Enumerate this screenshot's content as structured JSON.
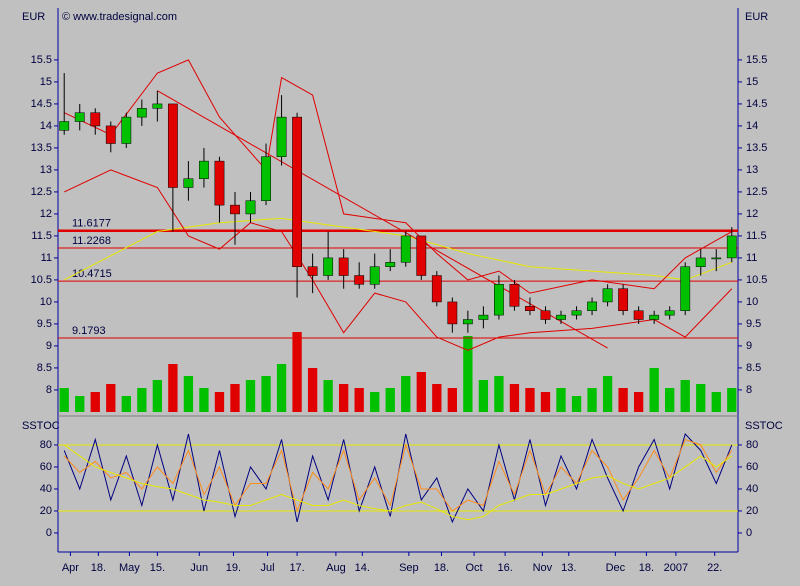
{
  "header": {
    "currency_left": "EUR",
    "copyright": "© www.tradesignal.com",
    "currency_right": "EUR"
  },
  "chart_data": [
    {
      "type": "candlestick",
      "xlim": [
        -0.4,
        43.4
      ],
      "ylim": [
        7.43,
        16.68
      ],
      "yticks": [
        8,
        8.5,
        9,
        9.5,
        10,
        10.5,
        11,
        11.5,
        12,
        12.5,
        13,
        13.5,
        14,
        14.5,
        15,
        15.5
      ],
      "open": [
        13.9,
        14.1,
        14.3,
        14.0,
        13.6,
        14.2,
        14.4,
        14.5,
        12.6,
        12.8,
        13.2,
        12.2,
        12.0,
        12.3,
        13.3,
        14.2,
        10.8,
        10.6,
        11.0,
        10.6,
        10.4,
        10.8,
        10.9,
        11.5,
        10.6,
        10.0,
        9.5,
        9.6,
        9.7,
        10.4,
        9.9,
        9.8,
        9.6,
        9.7,
        9.8,
        10.0,
        10.3,
        9.8,
        9.6,
        9.7,
        9.8,
        10.8,
        11.0,
        11.0
      ],
      "high": [
        15.2,
        14.5,
        14.4,
        14.1,
        14.3,
        14.6,
        14.8,
        14.5,
        13.2,
        13.5,
        13.3,
        12.5,
        12.5,
        13.6,
        14.7,
        14.3,
        11.1,
        11.6,
        11.2,
        10.9,
        11.1,
        11.2,
        11.6,
        11.5,
        10.7,
        10.1,
        9.8,
        9.9,
        10.6,
        10.5,
        10.1,
        9.9,
        9.8,
        9.9,
        10.1,
        10.4,
        10.4,
        9.9,
        9.8,
        9.9,
        10.9,
        11.2,
        11.2,
        11.7
      ],
      "low": [
        13.8,
        13.9,
        13.8,
        13.4,
        13.5,
        14.0,
        14.1,
        11.6,
        12.3,
        12.6,
        11.8,
        11.3,
        11.8,
        12.2,
        13.1,
        10.1,
        10.2,
        10.5,
        10.3,
        10.3,
        10.3,
        10.7,
        10.8,
        10.5,
        9.9,
        9.3,
        9.3,
        9.4,
        9.6,
        9.8,
        9.7,
        9.5,
        9.5,
        9.6,
        9.7,
        9.9,
        9.7,
        9.5,
        9.5,
        9.6,
        9.7,
        10.6,
        10.7,
        10.9
      ],
      "close": [
        14.1,
        14.3,
        14.0,
        13.6,
        14.2,
        14.4,
        14.5,
        12.6,
        12.8,
        13.2,
        12.2,
        12.0,
        12.3,
        13.3,
        14.2,
        10.8,
        10.6,
        11.0,
        10.6,
        10.4,
        10.8,
        10.9,
        11.5,
        10.6,
        10.0,
        9.5,
        9.6,
        9.7,
        10.4,
        9.9,
        9.8,
        9.6,
        9.7,
        9.8,
        10.0,
        10.3,
        9.8,
        9.6,
        9.7,
        9.8,
        10.8,
        11.0,
        11.0,
        11.5
      ],
      "volume": [
        30,
        20,
        25,
        35,
        20,
        30,
        40,
        60,
        45,
        30,
        25,
        35,
        40,
        45,
        60,
        100,
        55,
        40,
        35,
        30,
        25,
        30,
        45,
        50,
        35,
        30,
        95,
        40,
        45,
        35,
        30,
        25,
        30,
        20,
        30,
        45,
        30,
        25,
        55,
        30,
        40,
        35,
        25,
        30
      ],
      "bull_color": "#00c000",
      "bear_color": "#e00000",
      "levels": [
        11.6177,
        11.2268,
        10.4715,
        9.1793
      ],
      "level_color": "#e00000",
      "lines": [
        {
          "color": "#e8e800",
          "x": [
            0,
            6,
            10,
            14,
            18,
            22,
            26,
            30,
            34,
            38,
            40,
            43
          ],
          "values": [
            10.5,
            11.6,
            11.8,
            11.9,
            11.7,
            11.5,
            11.1,
            10.8,
            10.7,
            10.6,
            10.5,
            10.9
          ]
        },
        {
          "color": "#e00000",
          "x": [
            0,
            3,
            6,
            8,
            10,
            13,
            14,
            16,
            18,
            20,
            22,
            24,
            26,
            28,
            30,
            34,
            38,
            40,
            43
          ],
          "values": [
            14.3,
            13.8,
            15.2,
            15.5,
            14.2,
            13.0,
            15.1,
            14.7,
            12.0,
            11.9,
            11.8,
            11.1,
            10.5,
            10.7,
            10.2,
            10.5,
            10.3,
            11.0,
            11.6
          ]
        },
        {
          "color": "#e00000",
          "x": [
            0,
            3,
            6,
            8,
            10,
            12,
            14,
            16,
            18,
            20,
            22,
            24,
            26,
            28,
            30,
            34,
            38,
            40,
            43
          ],
          "values": [
            12.5,
            13.0,
            12.6,
            11.5,
            11.2,
            11.8,
            11.6,
            10.5,
            9.3,
            10.2,
            10.0,
            9.2,
            8.9,
            9.2,
            9.3,
            9.4,
            9.6,
            9.2,
            10.3
          ]
        },
        {
          "color": "#e00000",
          "x": [
            6,
            35
          ],
          "values": [
            14.8,
            8.95
          ]
        }
      ]
    },
    {
      "type": "oscillator",
      "title": "SSTOC",
      "xlim": [
        -0.4,
        43.4
      ],
      "ylim": [
        -17.3,
        102.7
      ],
      "yticks": [
        0,
        20,
        40,
        60,
        80
      ],
      "bands": [
        20,
        80
      ],
      "band_color": "#e8e800",
      "xticks": [
        {
          "value": 0.4,
          "label": "Apr"
        },
        {
          "value": 2.2,
          "label": "18."
        },
        {
          "value": 4.2,
          "label": "May"
        },
        {
          "value": 6.0,
          "label": "15."
        },
        {
          "value": 8.7,
          "label": "Jun"
        },
        {
          "value": 10.9,
          "label": "19."
        },
        {
          "value": 13.1,
          "label": "Jul"
        },
        {
          "value": 15.0,
          "label": "17."
        },
        {
          "value": 17.5,
          "label": "Aug"
        },
        {
          "value": 19.2,
          "label": "14."
        },
        {
          "value": 22.2,
          "label": "Sep"
        },
        {
          "value": 24.3,
          "label": "18."
        },
        {
          "value": 26.4,
          "label": "Oct"
        },
        {
          "value": 28.4,
          "label": "16."
        },
        {
          "value": 30.8,
          "label": "Nov"
        },
        {
          "value": 32.5,
          "label": "13."
        },
        {
          "value": 35.5,
          "label": "Dec"
        },
        {
          "value": 37.5,
          "label": "18."
        },
        {
          "value": 39.4,
          "label": "2007"
        },
        {
          "value": 41.9,
          "label": "22."
        }
      ],
      "series": [
        {
          "color": "#000080",
          "values": [
            75,
            40,
            85,
            30,
            70,
            25,
            80,
            30,
            90,
            20,
            75,
            15,
            60,
            40,
            85,
            10,
            70,
            30,
            85,
            20,
            60,
            15,
            90,
            30,
            50,
            10,
            40,
            20,
            80,
            30,
            85,
            25,
            70,
            40,
            85,
            50,
            20,
            60,
            85,
            40,
            90,
            75,
            45,
            80
          ]
        },
        {
          "color": "#ff8c1a",
          "values": [
            70,
            55,
            65,
            50,
            55,
            40,
            60,
            45,
            75,
            35,
            60,
            25,
            45,
            45,
            75,
            20,
            55,
            40,
            75,
            30,
            50,
            25,
            80,
            40,
            40,
            20,
            30,
            25,
            65,
            35,
            75,
            35,
            60,
            45,
            75,
            60,
            30,
            50,
            75,
            50,
            85,
            80,
            55,
            75
          ]
        },
        {
          "color": "#e8e800",
          "values": [
            80,
            70,
            60,
            55,
            50,
            45,
            42,
            40,
            35,
            30,
            28,
            25,
            25,
            30,
            35,
            30,
            25,
            25,
            30,
            25,
            22,
            20,
            25,
            28,
            22,
            15,
            12,
            15,
            25,
            30,
            35,
            35,
            40,
            45,
            50,
            52,
            45,
            40,
            45,
            50,
            60,
            70,
            60,
            70
          ]
        }
      ]
    }
  ]
}
